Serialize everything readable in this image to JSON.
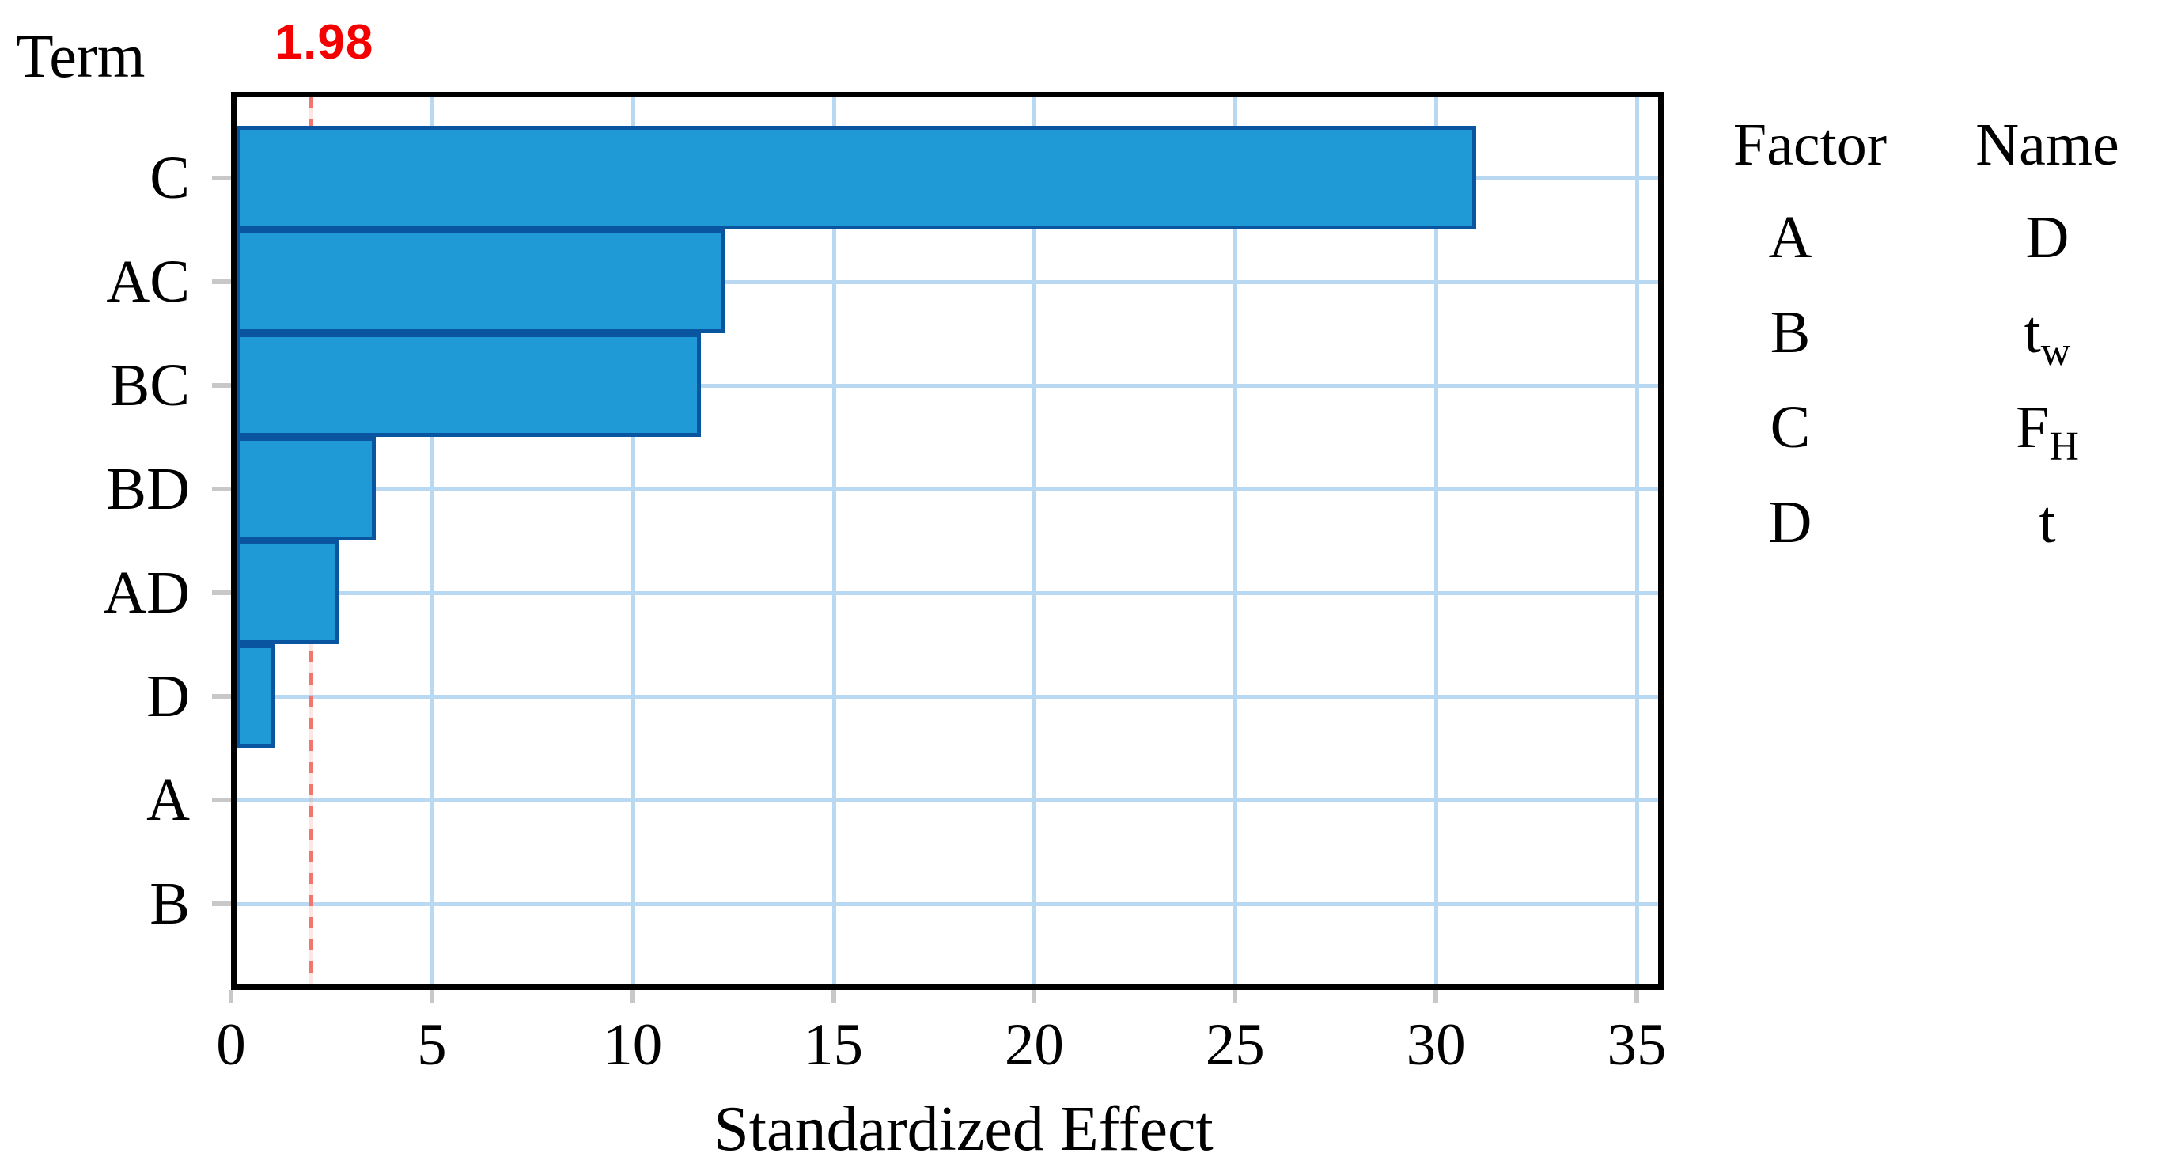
{
  "page": {
    "term_header": "Term",
    "background": "#ffffff"
  },
  "chart_data": {
    "type": "bar",
    "orientation": "horizontal",
    "title": "",
    "xlabel": "Standardized Effect",
    "ylabel": "Term",
    "categories": [
      "C",
      "AC",
      "BC",
      "BD",
      "AD",
      "D",
      "A",
      "B"
    ],
    "values": [
      31.0,
      12.3,
      11.7,
      3.6,
      2.7,
      1.1,
      0,
      0
    ],
    "x_ticks": [
      0,
      5,
      10,
      15,
      20,
      25,
      30,
      35
    ],
    "xlim": [
      0,
      35.7
    ],
    "grid": true,
    "reference_line": {
      "value": 1.98,
      "label": "1.98",
      "color": "#f2766d",
      "label_color": "#f40000",
      "style": "dotted"
    },
    "bar_color": "#1f9ad7",
    "bar_border_color": "#0a55a0",
    "gridline_color": "#b9d8f1",
    "axis_color": "#000000",
    "tick_mark_color": "#c8c8c8"
  },
  "legend": {
    "headers": {
      "factor": "Factor",
      "name": "Name"
    },
    "rows": [
      {
        "factor": "A",
        "name_base": "D",
        "name_sub": ""
      },
      {
        "factor": "B",
        "name_base": "t",
        "name_sub": "w"
      },
      {
        "factor": "C",
        "name_base": "F",
        "name_sub": "H"
      },
      {
        "factor": "D",
        "name_base": "t",
        "name_sub": ""
      }
    ]
  }
}
